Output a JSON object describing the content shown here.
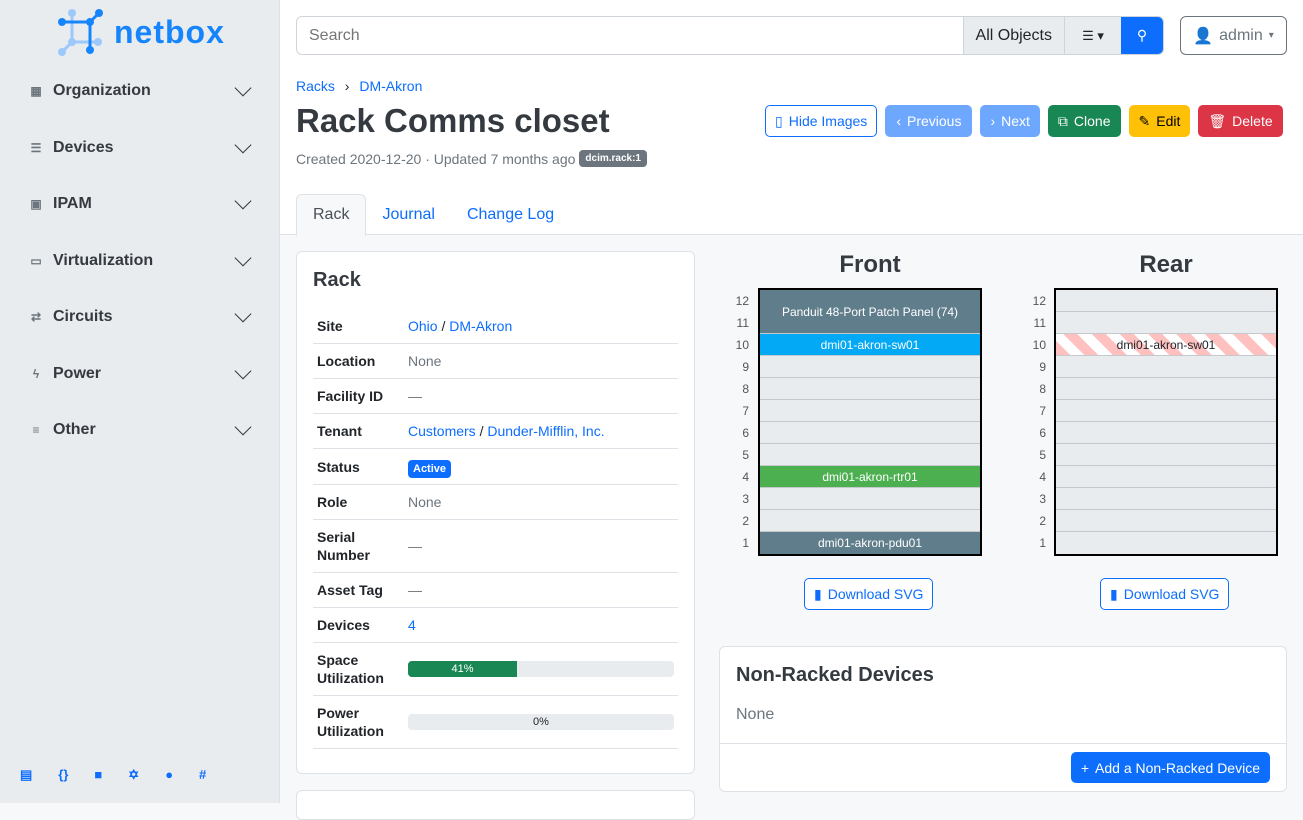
{
  "brand": {
    "name": "netbox"
  },
  "sidebar": {
    "items": [
      {
        "label": "Organization",
        "icon": "domain-icon"
      },
      {
        "label": "Devices",
        "icon": "server-icon"
      },
      {
        "label": "IPAM",
        "icon": "counter-icon"
      },
      {
        "label": "Virtualization",
        "icon": "monitor-icon"
      },
      {
        "label": "Circuits",
        "icon": "transit-icon"
      },
      {
        "label": "Power",
        "icon": "flash-icon"
      },
      {
        "label": "Other",
        "icon": "notes-icon"
      }
    ],
    "footer": [
      "book-icon",
      "braces-icon",
      "docs-icon",
      "graphql-icon",
      "github-icon",
      "slack-icon"
    ]
  },
  "search": {
    "placeholder": "Search",
    "scope": "All Objects"
  },
  "user": {
    "name": "admin"
  },
  "breadcrumb": [
    "Racks",
    "DM-Akron"
  ],
  "page": {
    "title": "Rack Comms closet",
    "meta": "Created 2020-12-20 · Updated 7 months ago",
    "tag": "dcim.rack:1"
  },
  "buttons": {
    "hide_images": "Hide Images",
    "previous": "Previous",
    "next": "Next",
    "clone": "Clone",
    "edit": "Edit",
    "delete": "Delete"
  },
  "tabs": [
    "Rack",
    "Journal",
    "Change Log"
  ],
  "rack_card": {
    "title": "Rack",
    "rows": {
      "site": {
        "k": "Site",
        "a": "Ohio",
        "b": "DM-Akron"
      },
      "location": {
        "k": "Location",
        "v": "None"
      },
      "facility": {
        "k": "Facility ID",
        "v": "—"
      },
      "tenant": {
        "k": "Tenant",
        "a": "Customers",
        "b": "Dunder-Mifflin, Inc."
      },
      "status": {
        "k": "Status",
        "v": "Active"
      },
      "role": {
        "k": "Role",
        "v": "None"
      },
      "serial": {
        "k": "Serial Number",
        "v": "—"
      },
      "asset": {
        "k": "Asset Tag",
        "v": "—"
      },
      "devices": {
        "k": "Devices",
        "v": "4"
      },
      "space": {
        "k": "Space Utilization",
        "v": "41%",
        "pct": 41
      },
      "power": {
        "k": "Power Utilization",
        "v": "0%",
        "pct": 0
      }
    }
  },
  "elevations": {
    "front_title": "Front",
    "rear_title": "Rear",
    "download": "Download SVG",
    "front": {
      "patch": "Panduit 48-Port Patch Panel (74)",
      "sw": "dmi01-akron-sw01",
      "rtr": "dmi01-akron-rtr01",
      "pdu": "dmi01-akron-pdu01"
    },
    "rear": {
      "sw": "dmi01-akron-sw01"
    },
    "colors": {
      "patch": "#607d8b",
      "sw": "#03a9f4",
      "rtr": "#4caf50",
      "pdu": "#607d8b"
    }
  },
  "nonracked": {
    "title": "Non-Racked Devices",
    "value": "None",
    "add": "Add a Non-Racked Device"
  }
}
